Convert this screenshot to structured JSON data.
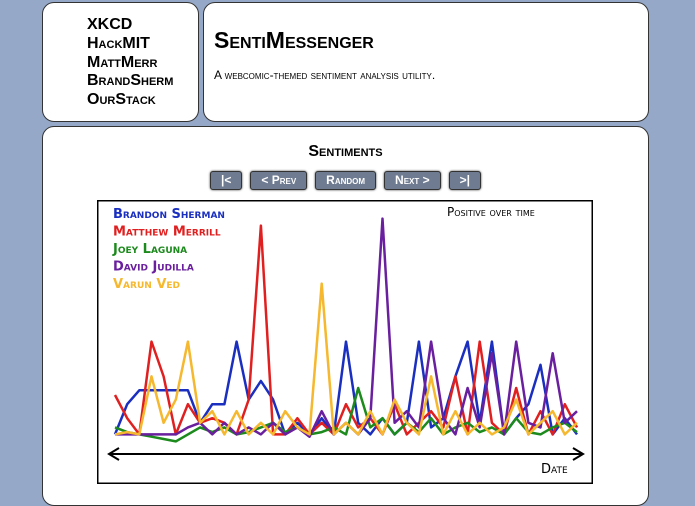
{
  "nav": {
    "items": [
      "XKCD",
      "HackMIT",
      "MattMerr",
      "BrandSherm",
      "OurStack"
    ]
  },
  "header": {
    "title": "SentiMessenger",
    "subtitle": "A webcomic-themed sentiment analysis utility."
  },
  "comic": {
    "title": "Sentiments",
    "buttons": {
      "first": "|<",
      "prev": "< Prev",
      "random": "Random",
      "next": "Next >",
      "last": ">|"
    }
  },
  "chart_data": {
    "type": "line",
    "title": "Positive over time",
    "xlabel": "Date",
    "ylabel": "",
    "grid": false,
    "legend_position": "top-left",
    "series": [
      {
        "name": "Brandon Sherman",
        "color": "#1a2fbf",
        "values": [
          0.05,
          0.18,
          0.24,
          0.24,
          0.24,
          0.24,
          0.24,
          0.1,
          0.18,
          0.18,
          0.45,
          0.2,
          0.28,
          0.2,
          0.05,
          0.1,
          0.05,
          0.12,
          0.05,
          0.45,
          0.1,
          0.05,
          0.12,
          0.05,
          0.1,
          0.45,
          0.08,
          0.12,
          0.3,
          0.45,
          0.1,
          0.45,
          0.05,
          0.12,
          0.18,
          0.35,
          0.05,
          0.12,
          0.05
        ]
      },
      {
        "name": "Matthew Merrill",
        "color": "#e02020",
        "values": [
          0.22,
          0.12,
          0.05,
          0.45,
          0.3,
          0.05,
          0.18,
          0.1,
          0.12,
          0.1,
          0.05,
          0.2,
          0.95,
          0.05,
          0.05,
          0.12,
          0.05,
          0.1,
          0.05,
          0.18,
          0.08,
          0.12,
          0.05,
          0.18,
          0.05,
          0.1,
          0.15,
          0.08,
          0.3,
          0.05,
          0.45,
          0.1,
          0.05,
          0.25,
          0.05,
          0.15,
          0.05,
          0.18,
          0.08
        ]
      },
      {
        "name": "Joey Laguna",
        "color": "#1c8a1c",
        "values": [
          0.08,
          0.06,
          0.05,
          0.04,
          0.03,
          0.02,
          0.05,
          0.08,
          0.06,
          0.08,
          0.05,
          0.06,
          0.08,
          0.1,
          0.06,
          0.08,
          0.05,
          0.06,
          0.08,
          0.05,
          0.25,
          0.08,
          0.12,
          0.05,
          0.1,
          0.06,
          0.12,
          0.05,
          0.08,
          0.1,
          0.06,
          0.08,
          0.05,
          0.12,
          0.06,
          0.05,
          0.08,
          0.1,
          0.06
        ]
      },
      {
        "name": "David Judilla",
        "color": "#6a1f9e",
        "values": [
          0.05,
          0.05,
          0.05,
          0.05,
          0.05,
          0.05,
          0.08,
          0.1,
          0.05,
          0.1,
          0.05,
          0.08,
          0.05,
          0.1,
          0.05,
          0.08,
          0.04,
          0.15,
          0.05,
          0.1,
          0.05,
          0.12,
          0.98,
          0.1,
          0.15,
          0.08,
          0.45,
          0.12,
          0.05,
          0.25,
          0.08,
          0.4,
          0.05,
          0.45,
          0.1,
          0.08,
          0.4,
          0.1,
          0.15
        ]
      },
      {
        "name": "Varun Ved",
        "color": "#f5b82e",
        "values": [
          0.05,
          0.06,
          0.05,
          0.3,
          0.1,
          0.2,
          0.45,
          0.1,
          0.15,
          0.05,
          0.15,
          0.05,
          0.1,
          0.05,
          0.15,
          0.08,
          0.05,
          0.7,
          0.05,
          0.1,
          0.05,
          0.15,
          0.05,
          0.2,
          0.1,
          0.05,
          0.3,
          0.05,
          0.15,
          0.05,
          0.1,
          0.05,
          0.08,
          0.2,
          0.05,
          0.1,
          0.15,
          0.05,
          0.1
        ]
      }
    ]
  },
  "colors": {
    "background": "#96a8c8",
    "button": "#6e7b91"
  }
}
